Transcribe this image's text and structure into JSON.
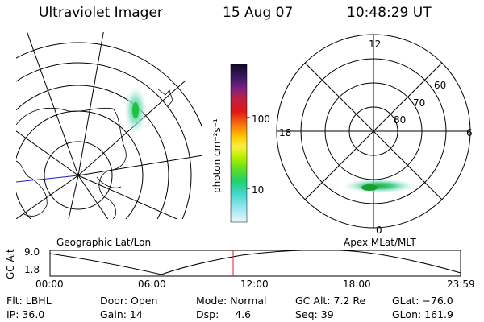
{
  "header": {
    "instrument": "Ultraviolet Imager",
    "date": "15 Aug 07",
    "time": "10:48:29 UT"
  },
  "colorbar": {
    "label": "photon cm⁻²s⁻¹",
    "ticks": [
      "100",
      "10"
    ],
    "scale": "log",
    "colors": [
      "#1a0a30",
      "#3a1a60",
      "#602080",
      "#8a1f78",
      "#b8203c",
      "#d81818",
      "#f05010",
      "#ff9a00",
      "#ffd000",
      "#f8f040",
      "#c8f000",
      "#70e020",
      "#20d060",
      "#30d8b0",
      "#60d8e0",
      "#a8e8f0",
      "#dcf4f8"
    ]
  },
  "map_labels": {
    "geo": "Geographic Lat/Lon",
    "apex": "Apex MLat/MLT"
  },
  "polar": {
    "mlt_labels": [
      "12",
      "18",
      "6",
      "0"
    ],
    "mlat_labels": [
      "60",
      "70",
      "80"
    ]
  },
  "alt_plot": {
    "ylabel": "GC Alt",
    "yticks": [
      "9.0",
      "1.8"
    ],
    "xticks": [
      "00:00",
      "06:00",
      "12:00",
      "18:00",
      "23:59"
    ],
    "current_time_color": "#e02020"
  },
  "info": {
    "flt": "Flt: LBHL",
    "ip": "IP: 36.0",
    "door": "Door: Open",
    "gain": "Gain: 14",
    "mode": "Mode: Normal",
    "dsp": "Dsp:     4.6",
    "gcalt": "GC Alt: 7.2 Re",
    "seq": "Seq: 39",
    "glat": "GLat: −76.0",
    "glon": "GLon: 161.9"
  }
}
